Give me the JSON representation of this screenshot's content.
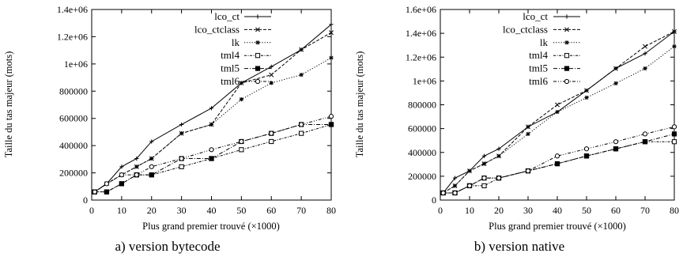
{
  "chart_data": [
    {
      "type": "line",
      "caption": "a)  version bytecode",
      "xlabel": "Plus grand premier trouvé (×1000)",
      "ylabel": "Taille du tas majeur (mots)",
      "xlim": [
        0,
        80
      ],
      "ylim": [
        0,
        1400000
      ],
      "xticks": [
        0,
        10,
        20,
        30,
        40,
        50,
        60,
        70,
        80
      ],
      "yticks": [
        0,
        200000,
        400000,
        600000,
        800000,
        1000000,
        1200000,
        1400000
      ],
      "ytick_labels": [
        "0",
        "200000",
        "400000",
        "600000",
        "800000",
        "1e+06",
        "1.2e+06",
        "1.4e+06"
      ],
      "legend_position": "top-right",
      "grid": false,
      "x": [
        1,
        5,
        10,
        15,
        20,
        30,
        40,
        50,
        60,
        70,
        80
      ],
      "series": [
        {
          "name": "lco_ct",
          "marker": "plus",
          "dash": "solid",
          "values": [
            60000,
            120000,
            245000,
            305000,
            430000,
            555000,
            675000,
            860000,
            980000,
            1105000,
            1290000
          ]
        },
        {
          "name": "lco_ctclass",
          "marker": "cross",
          "dash": "dashed",
          "values": [
            60000,
            120000,
            185000,
            245000,
            305000,
            490000,
            555000,
            860000,
            920000,
            1105000,
            1230000
          ]
        },
        {
          "name": "lk",
          "marker": "star",
          "dash": "dotted",
          "values": [
            60000,
            120000,
            185000,
            245000,
            305000,
            490000,
            555000,
            740000,
            860000,
            920000,
            1045000
          ]
        },
        {
          "name": "tml4",
          "marker": "square-open",
          "dash": "dashdot-fine",
          "values": [
            60000,
            60000,
            120000,
            185000,
            185000,
            245000,
            305000,
            370000,
            430000,
            490000,
            555000
          ]
        },
        {
          "name": "tml5",
          "marker": "square-filled",
          "dash": "dashdot",
          "values": [
            60000,
            60000,
            120000,
            185000,
            185000,
            305000,
            305000,
            430000,
            490000,
            555000,
            555000
          ]
        },
        {
          "name": "tml6",
          "marker": "circle",
          "dash": "dashdotdot",
          "values": [
            60000,
            120000,
            185000,
            185000,
            245000,
            305000,
            370000,
            430000,
            490000,
            555000,
            615000
          ]
        }
      ]
    },
    {
      "type": "line",
      "caption": "b)  version native",
      "xlabel": "Plus grand premier trouvé (×1000)",
      "ylabel": "Taille du tas majeur (mots)",
      "xlim": [
        0,
        80
      ],
      "ylim": [
        0,
        1600000
      ],
      "xticks": [
        0,
        10,
        20,
        30,
        40,
        50,
        60,
        70,
        80
      ],
      "yticks": [
        0,
        200000,
        400000,
        600000,
        800000,
        1000000,
        1200000,
        1400000,
        1600000
      ],
      "ytick_labels": [
        "0",
        "200000",
        "400000",
        "600000",
        "800000",
        "1e+06",
        "1.2e+06",
        "1.4e+06",
        "1.6e+06"
      ],
      "legend_position": "top-right",
      "grid": false,
      "x": [
        1,
        5,
        10,
        15,
        20,
        30,
        40,
        50,
        60,
        70,
        80
      ],
      "series": [
        {
          "name": "lco_ct",
          "marker": "plus",
          "dash": "solid",
          "values": [
            60000,
            185000,
            245000,
            370000,
            430000,
            615000,
            740000,
            920000,
            1105000,
            1230000,
            1415000
          ]
        },
        {
          "name": "lco_ctclass",
          "marker": "cross",
          "dash": "dashed",
          "values": [
            60000,
            120000,
            245000,
            305000,
            370000,
            615000,
            800000,
            920000,
            1105000,
            1290000,
            1415000
          ]
        },
        {
          "name": "lk",
          "marker": "star",
          "dash": "dotted",
          "values": [
            60000,
            120000,
            245000,
            305000,
            370000,
            555000,
            740000,
            860000,
            980000,
            1105000,
            1290000
          ]
        },
        {
          "name": "tml4",
          "marker": "square-open",
          "dash": "dashdot-fine",
          "values": [
            60000,
            60000,
            120000,
            120000,
            185000,
            245000,
            305000,
            370000,
            430000,
            490000,
            490000
          ]
        },
        {
          "name": "tml5",
          "marker": "square-filled",
          "dash": "dashdot",
          "values": [
            60000,
            60000,
            120000,
            185000,
            185000,
            245000,
            305000,
            370000,
            430000,
            490000,
            555000
          ]
        },
        {
          "name": "tml6",
          "marker": "circle",
          "dash": "dashdotdot",
          "values": [
            60000,
            60000,
            120000,
            185000,
            185000,
            245000,
            370000,
            430000,
            490000,
            555000,
            615000
          ]
        }
      ]
    }
  ]
}
